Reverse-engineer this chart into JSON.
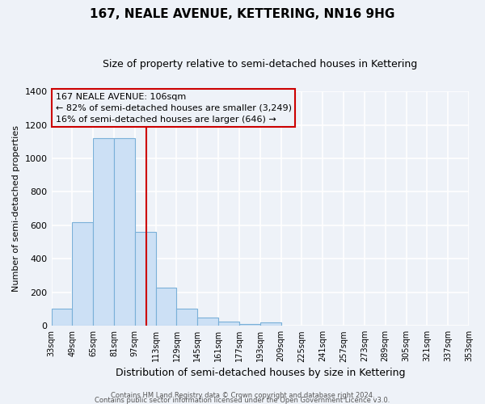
{
  "title": "167, NEALE AVENUE, KETTERING, NN16 9HG",
  "subtitle": "Size of property relative to semi-detached houses in Kettering",
  "xlabel": "Distribution of semi-detached houses by size in Kettering",
  "ylabel": "Number of semi-detached properties",
  "bar_lefts": [
    33,
    49,
    65,
    81,
    97,
    113,
    129,
    145,
    161,
    177,
    193,
    209,
    225,
    241,
    257,
    273,
    289,
    305,
    321,
    337
  ],
  "bar_values": [
    100,
    620,
    1120,
    1120,
    560,
    230,
    100,
    50,
    25,
    10,
    20,
    0,
    0,
    0,
    0,
    0,
    0,
    0,
    0,
    0
  ],
  "bin_width": 16,
  "bar_color": "#cce0f5",
  "bar_edgecolor": "#7ab0d8",
  "property_line_x": 106,
  "property_line_color": "#cc0000",
  "annotation_title": "167 NEALE AVENUE: 106sqm",
  "annotation_line1": "← 82% of semi-detached houses are smaller (3,249)",
  "annotation_line2": "16% of semi-detached houses are larger (646) →",
  "annotation_box_edgecolor": "#cc0000",
  "xlim": [
    33,
    353
  ],
  "ylim": [
    0,
    1400
  ],
  "yticks": [
    0,
    200,
    400,
    600,
    800,
    1000,
    1200,
    1400
  ],
  "xtick_positions": [
    33,
    49,
    65,
    81,
    97,
    113,
    129,
    145,
    161,
    177,
    193,
    209,
    225,
    241,
    257,
    273,
    289,
    305,
    321,
    337,
    353
  ],
  "tick_labels": [
    "33sqm",
    "49sqm",
    "65sqm",
    "81sqm",
    "97sqm",
    "113sqm",
    "129sqm",
    "145sqm",
    "161sqm",
    "177sqm",
    "193sqm",
    "209sqm",
    "225sqm",
    "241sqm",
    "257sqm",
    "273sqm",
    "289sqm",
    "305sqm",
    "321sqm",
    "337sqm",
    "353sqm"
  ],
  "footer1": "Contains HM Land Registry data © Crown copyright and database right 2024.",
  "footer2": "Contains public sector information licensed under the Open Government Licence v3.0.",
  "background_color": "#eef2f8",
  "grid_color": "#ffffff"
}
